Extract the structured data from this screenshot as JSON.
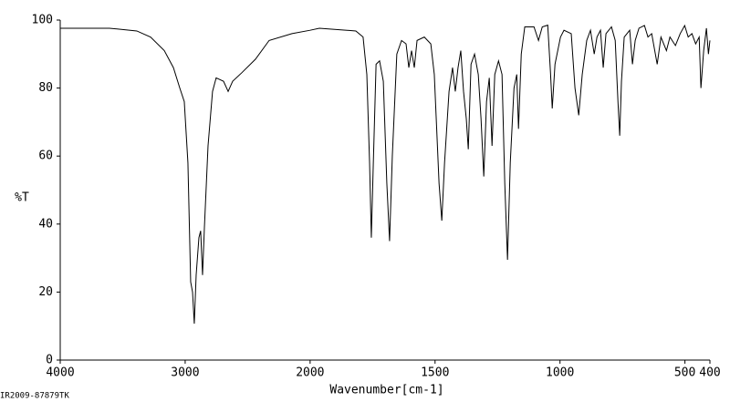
{
  "chart_data": {
    "type": "line",
    "x_label": "Wavenumber[cm-1]",
    "y_label": "%T",
    "footnote": "IR2009-87879TK",
    "xlim": [
      4000,
      400
    ],
    "x_scale_break": 2000,
    "x_scale_break_factor": 2,
    "xticks": [
      4000,
      3000,
      2000,
      1500,
      1000,
      500,
      400
    ],
    "ylim": [
      0,
      100
    ],
    "yticks": [
      0,
      20,
      40,
      60,
      80,
      100
    ],
    "color": "#000000",
    "x": [
      4000,
      3606,
      3387,
      3277,
      3167,
      3094,
      3043,
      3007,
      2978,
      2956,
      2941,
      2927,
      2912,
      2890,
      2876,
      2861,
      2846,
      2817,
      2781,
      2752,
      2693,
      2656,
      2620,
      2547,
      2437,
      2328,
      2145,
      2000,
      1963,
      1817,
      1788,
      1773,
      1762,
      1755,
      1747,
      1736,
      1722,
      1707,
      1693,
      1682,
      1671,
      1653,
      1634,
      1616,
      1605,
      1594,
      1583,
      1572,
      1543,
      1517,
      1503,
      1484,
      1473,
      1462,
      1444,
      1430,
      1419,
      1408,
      1397,
      1386,
      1375,
      1367,
      1356,
      1342,
      1327,
      1316,
      1305,
      1294,
      1283,
      1272,
      1261,
      1246,
      1232,
      1221,
      1210,
      1199,
      1184,
      1173,
      1166,
      1155,
      1141,
      1104,
      1086,
      1071,
      1049,
      1038,
      1031,
      1020,
      1009,
      998,
      984,
      955,
      940,
      925,
      911,
      893,
      878,
      863,
      852,
      838,
      827,
      816,
      794,
      779,
      768,
      761,
      754,
      743,
      721,
      710,
      699,
      684,
      662,
      648,
      633,
      611,
      596,
      574,
      560,
      538,
      519,
      501,
      487,
      472,
      457,
      443,
      436,
      425,
      414,
      406,
      400
    ],
    "values": [
      97.6,
      97.6,
      96.8,
      95,
      91,
      86,
      80,
      76,
      58,
      23,
      20,
      10.7,
      25,
      36,
      38,
      25,
      39,
      63,
      79,
      83,
      82,
      79,
      82,
      84.5,
      88.5,
      94,
      96,
      97,
      97.6,
      96.8,
      95,
      84,
      58,
      36,
      58,
      87,
      88,
      82,
      52,
      35,
      60,
      90,
      94,
      93,
      86,
      91,
      86,
      94,
      95,
      93,
      84,
      52,
      41,
      58,
      79,
      86,
      79,
      86,
      91,
      79,
      71,
      62,
      87,
      90,
      84,
      71,
      54,
      76,
      83,
      63,
      84,
      88,
      84,
      52,
      29.5,
      58,
      80,
      84,
      68,
      90,
      98,
      98,
      94,
      98,
      98.5,
      84.5,
      74,
      87,
      91,
      95,
      97,
      96,
      80,
      72,
      84,
      94,
      97,
      90,
      95,
      97,
      86,
      96,
      98,
      94,
      76,
      66,
      82,
      95,
      97,
      87,
      94,
      97.6,
      98.4,
      95,
      96,
      87,
      95,
      91,
      95,
      92.5,
      96,
      98.4,
      95,
      96,
      93,
      95,
      80,
      91,
      97.6,
      90,
      94
    ]
  }
}
